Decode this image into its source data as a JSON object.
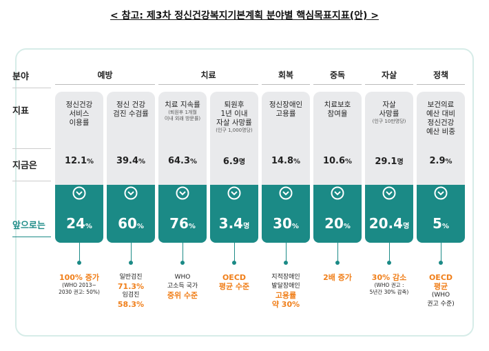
{
  "header": {
    "title": "< 참고: 제3차 정신건강복지기본계획 분야별 핵심목표지표(안) >"
  },
  "row_labels": [
    "분야",
    "지표",
    "지금은",
    "앞으로는"
  ],
  "fields": [
    {
      "name": "예방",
      "span": 2
    },
    {
      "name": "치료",
      "span": 2
    },
    {
      "name": "회복",
      "span": 1
    },
    {
      "name": "중독",
      "span": 1
    },
    {
      "name": "자살",
      "span": 1
    },
    {
      "name": "정책",
      "span": 1
    }
  ],
  "columns": [
    {
      "indicator": [
        "정신건강",
        "서비스",
        "이용률"
      ],
      "note": [],
      "current": "12.1",
      "current_unit": "%",
      "target": "24",
      "target_unit": "%",
      "goal": [
        {
          "text": "100% 증가",
          "style": "accent"
        },
        {
          "text": "(WHO 2013~",
          "style": "small"
        },
        {
          "text": "2030 권고: 50%)",
          "style": "small"
        }
      ]
    },
    {
      "indicator": [
        "정신 건강",
        "검진 수검률"
      ],
      "note": [],
      "current": "39.4",
      "current_unit": "%",
      "target": "60",
      "target_unit": "%",
      "goal": [
        {
          "text": "일반검진",
          "style": "normal"
        },
        {
          "text": "71.3%",
          "style": "accent"
        },
        {
          "text": "임검진",
          "style": "normal"
        },
        {
          "text": "58.3%",
          "style": "accent"
        }
      ]
    },
    {
      "indicator": [
        "치료 지속률"
      ],
      "note": [
        "(퇴원후 1개월",
        "이내 외래 방문률)"
      ],
      "current": "64.3",
      "current_unit": "%",
      "target": "76",
      "target_unit": "%",
      "goal": [
        {
          "text": "WHO",
          "style": "normal"
        },
        {
          "text": "고소득 국가",
          "style": "normal"
        },
        {
          "text": "중위 수준",
          "style": "accent"
        }
      ]
    },
    {
      "indicator": [
        "퇴원후",
        "1년 이내",
        "자살 사망률"
      ],
      "note": [
        "(인구 1,000명당)"
      ],
      "current": "6.9",
      "current_unit": "명",
      "target": "3.4",
      "target_unit": "명",
      "goal": [
        {
          "text": "OECD",
          "style": "accent"
        },
        {
          "text": "평균 수준",
          "style": "accent"
        }
      ]
    },
    {
      "indicator": [
        "정신장애인",
        "고용률"
      ],
      "note": [],
      "current": "14.8",
      "current_unit": "%",
      "target": "30",
      "target_unit": "%",
      "goal": [
        {
          "text": "지적장애인",
          "style": "normal"
        },
        {
          "text": "발달장애인",
          "style": "normal"
        },
        {
          "text": "고용률",
          "style": "accent"
        },
        {
          "text": "약 30%",
          "style": "accent"
        }
      ]
    },
    {
      "indicator": [
        "치료보호",
        "참여율"
      ],
      "note": [],
      "current": "10.6",
      "current_unit": "%",
      "target": "20",
      "target_unit": "%",
      "goal": [
        {
          "text": "2배 증가",
          "style": "accent"
        }
      ]
    },
    {
      "indicator": [
        "자살",
        "사망률"
      ],
      "note": [
        "(인구 10만명당)"
      ],
      "current": "29.1",
      "current_unit": "명",
      "target": "20.4",
      "target_unit": "명",
      "goal": [
        {
          "text": "30% 감소",
          "style": "accent"
        },
        {
          "text": "(WHO 권고 :",
          "style": "small"
        },
        {
          "text": "5년간 30% 감축)",
          "style": "small"
        }
      ]
    },
    {
      "indicator": [
        "보건의료",
        "예산 대비",
        "정신건강",
        "예산 비중"
      ],
      "note": [],
      "current": "2.9",
      "current_unit": "%",
      "target": "5",
      "target_unit": "%",
      "goal": [
        {
          "text": "OECD",
          "style": "accent"
        },
        {
          "text": "평균",
          "style": "accent"
        },
        {
          "text": "(WHO",
          "style": "normal"
        },
        {
          "text": "권고 수준)",
          "style": "normal"
        }
      ]
    }
  ]
}
